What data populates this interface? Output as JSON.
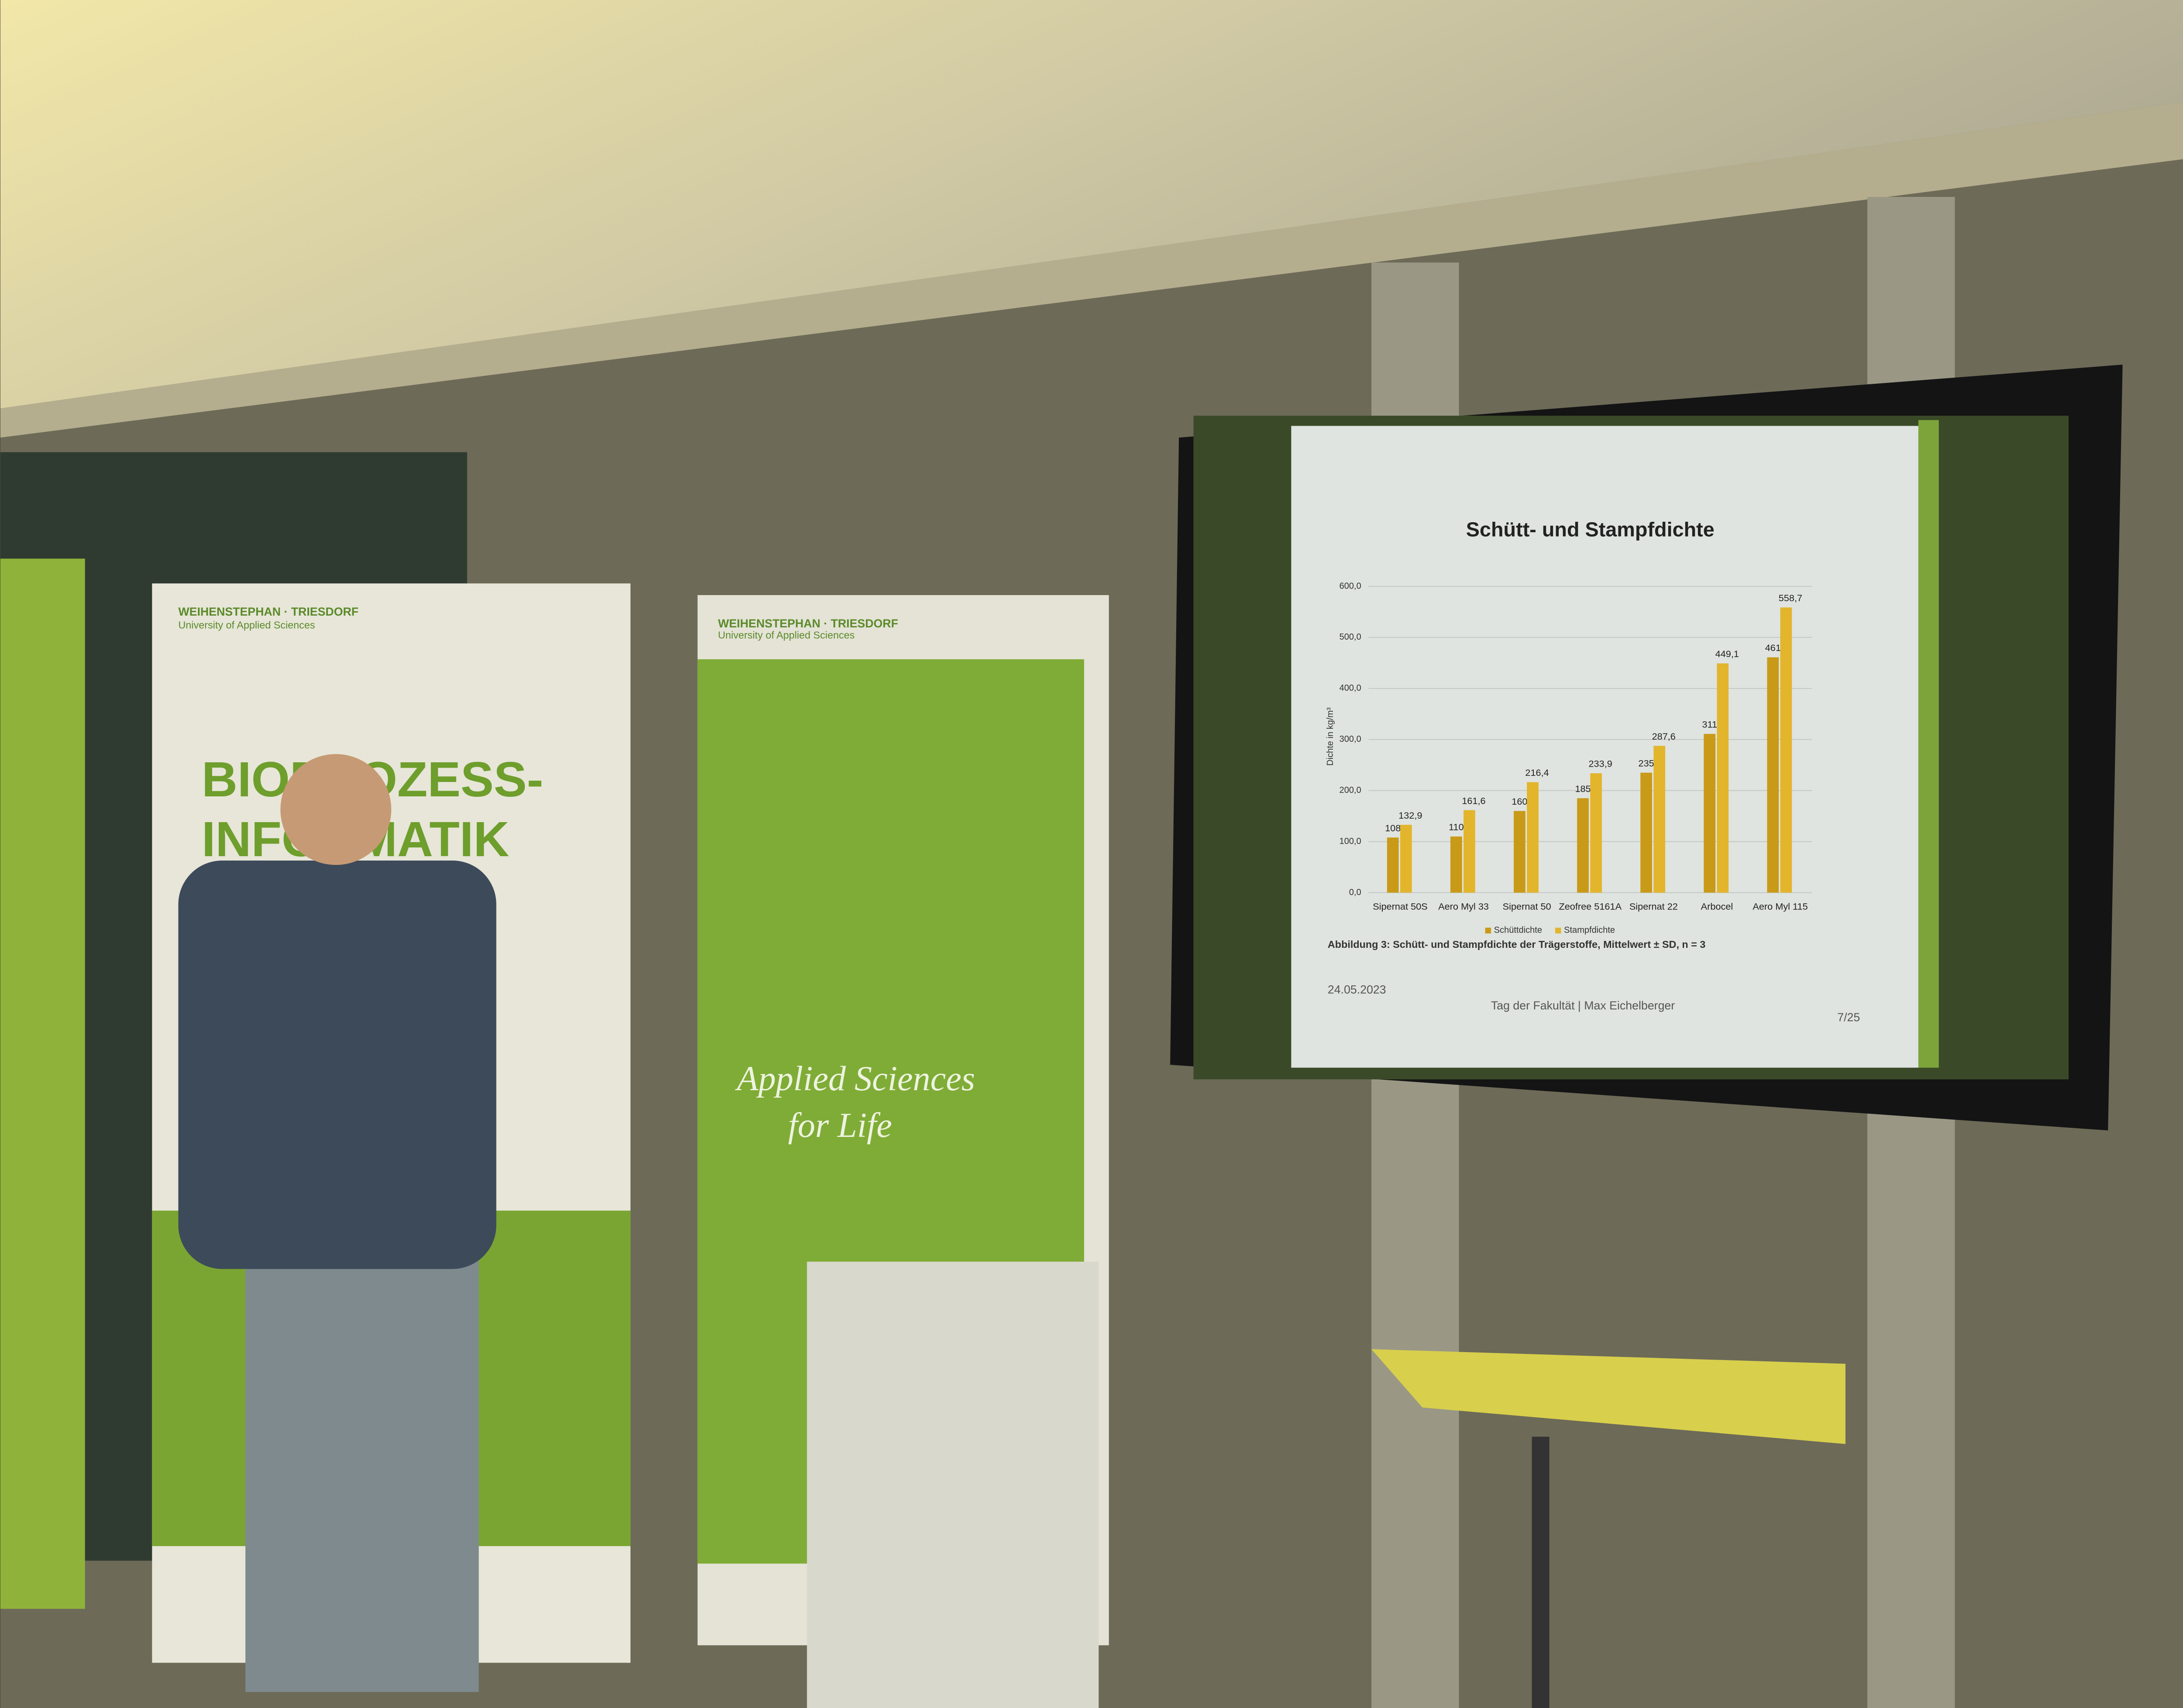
{
  "chart_data": {
    "type": "bar",
    "title": "Schütt- und Stampfdichte",
    "ylabel": "Dichte in kg/m³",
    "categories": [
      "Sipernat 50S",
      "Aero Myl 33",
      "Sipernat 50",
      "Zeofree 5161A",
      "Sipernat 22",
      "Arbocel",
      "Aero Myl 115"
    ],
    "series": [
      {
        "name": "Schüttdichte",
        "color": "#c99a18",
        "values": [
          108,
          110,
          160,
          185,
          235,
          311,
          461
        ]
      },
      {
        "name": "Stampfdichte",
        "color": "#e2b52c",
        "values": [
          132.9,
          161.6,
          216.4,
          233.9,
          287.6,
          449.1,
          558.7
        ],
        "value_labels": [
          "132,9",
          "161,6",
          "216,4",
          "233,9",
          "287,6",
          "449,1",
          "558,7"
        ]
      }
    ],
    "ylim": [
      0,
      600
    ],
    "yticks": [
      {
        "value": 0,
        "label": "0,0"
      },
      {
        "value": 100,
        "label": "100,0"
      },
      {
        "value": 200,
        "label": "200,0"
      },
      {
        "value": 300,
        "label": "300,0"
      },
      {
        "value": 400,
        "label": "400,0"
      },
      {
        "value": 500,
        "label": "500,0"
      },
      {
        "value": 600,
        "label": "600,0"
      }
    ],
    "grid": true,
    "legend": "bottom",
    "caption": "Abbildung 3: Schütt- und Stampfdichte der Trägerstoffe, Mittelwert ± SD, n = 3"
  },
  "slide": {
    "date": "24.05.2023",
    "footer": "Tag der Fakultät | Max Eichelberger",
    "page": "7/25"
  },
  "banners": {
    "brand": "WEIHENSTEPHAN · TRIESDORF",
    "university": "University of Applied Sciences",
    "program_1": "BIOPROZESS-",
    "program_2": "INFORMATIK",
    "slogan_1": "Applied Sciences",
    "slogan_2": "for Life"
  }
}
